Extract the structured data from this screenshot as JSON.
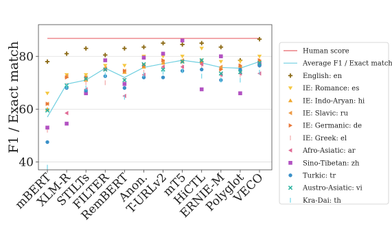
{
  "chart_data": {
    "type": "scatter",
    "ylabel": "F1 / Exact match",
    "xlabel": "",
    "ylim": [
      37,
      92
    ],
    "yticks": [
      40,
      60,
      80
    ],
    "grid": "horizontal",
    "legend_position": "right",
    "categories": [
      "mBERT",
      "XLM-R",
      "STILTs",
      "FILTER",
      "RemBERT",
      "Anon.",
      "T-URLv2",
      "mT5",
      "HiCTL",
      "ERNIE-M",
      "Polyglot",
      "VECO"
    ],
    "human_score": {
      "name": "Human score",
      "value": 86.8,
      "color": "#e8646b"
    },
    "average": {
      "name": "Average F1 / Exact match",
      "color": "#6fcfe0",
      "values": [
        57.0,
        69.5,
        71.0,
        75.5,
        72.0,
        75.8,
        77.2,
        78.5,
        77.5,
        75.8,
        75.5,
        78.0
      ]
    },
    "series": [
      {
        "name": "English: en",
        "marker": "plus",
        "color": "#8b6914",
        "values": [
          78.0,
          81.0,
          83.0,
          80.5,
          83.0,
          83.5,
          85.0,
          84.5,
          85.0,
          83.5,
          78.5,
          86.5
        ]
      },
      {
        "name": "IE: Romance: es",
        "marker": "tri-down",
        "color": "#f5c842",
        "values": [
          66.0,
          73.0,
          73.0,
          76.5,
          76.5,
          80.0,
          80.0,
          80.0,
          83.0,
          78.0,
          78.0,
          80.0
        ]
      },
      {
        "name": "IE: Indo-Aryan: hi",
        "marker": "tri-up",
        "color": "#f0a830",
        "values": [
          60.0,
          72.5,
          71.0,
          75.5,
          74.0,
          76.0,
          77.5,
          78.0,
          78.5,
          75.5,
          76.5,
          78.5
        ]
      },
      {
        "name": "IE: Slavic: ru",
        "marker": "tri-left",
        "color": "#ee9a45",
        "values": [
          62.0,
          72.5,
          72.0,
          75.5,
          74.5,
          76.5,
          78.0,
          78.5,
          77.5,
          76.0,
          76.0,
          78.0
        ]
      },
      {
        "name": "IE: Germanic: de",
        "marker": "tri-right",
        "color": "#e8783a",
        "values": [
          62.0,
          72.0,
          72.0,
          75.0,
          74.5,
          76.5,
          78.5,
          78.0,
          78.0,
          75.0,
          76.5,
          78.5
        ]
      },
      {
        "name": "IE: Greek: el",
        "marker": "vline",
        "color": "#f2a8a8",
        "values": [
          52.0,
          69.0,
          70.0,
          70.0,
          71.0,
          74.0,
          76.0,
          76.0,
          76.0,
          73.0,
          73.0,
          76.5
        ]
      },
      {
        "name": "Afro-Asiatic: ar",
        "marker": "tri-left",
        "color": "#e06a95",
        "values": [
          53.0,
          58.5,
          67.5,
          75.0,
          65.0,
          73.0,
          76.0,
          76.0,
          77.0,
          73.0,
          73.5,
          73.5
        ]
      },
      {
        "name": "Sino-Tibetan: zh",
        "marker": "square",
        "color": "#b252c2",
        "values": [
          53.0,
          54.5,
          66.0,
          78.5,
          69.5,
          79.5,
          81.0,
          86.0,
          67.5,
          80.0,
          66.0,
          77.0
        ]
      },
      {
        "name": "Turkic: tr",
        "marker": "circle",
        "color": "#3a90c8",
        "values": [
          47.5,
          68.0,
          67.0,
          72.5,
          68.0,
          72.0,
          72.0,
          74.5,
          75.0,
          71.0,
          75.0,
          76.5
        ]
      },
      {
        "name": "Austro-Asiatic: vi",
        "marker": "x",
        "color": "#2bb3a0",
        "values": [
          59.5,
          69.0,
          71.5,
          75.0,
          71.0,
          77.0,
          75.0,
          78.0,
          78.5,
          73.5,
          74.0,
          77.5
        ]
      },
      {
        "name": "Kra-Dai: th",
        "marker": "vline",
        "color": "#6fd4e8",
        "values": [
          38.0,
          68.5,
          68.0,
          73.0,
          64.5,
          73.0,
          74.0,
          74.5,
          72.5,
          71.0,
          71.0,
          74.0
        ]
      }
    ]
  }
}
